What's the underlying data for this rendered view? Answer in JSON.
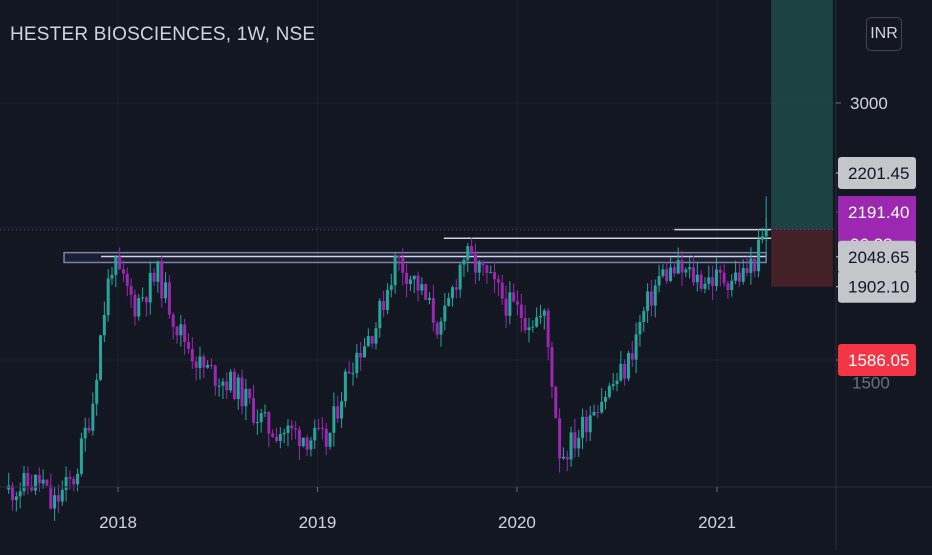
{
  "header": {
    "symbol_title": "HESTER BIOSCIENCES, 1W, NSE",
    "currency": "INR"
  },
  "colors": {
    "background": "#131722",
    "grid": "#1e222d",
    "up_candle": "#26a69a",
    "down_candle": "#9c27b0",
    "axis_text": "#d1d4dc",
    "current_price_line": "#9c27b0",
    "target_zone": "#1f4a46",
    "stop_zone": "#4a2128",
    "level_lines": "#cfd3dc",
    "resistance_box": "#7e80a0"
  },
  "price_axis": {
    "labels": [
      "3000"
    ],
    "badges": [
      {
        "text": "2201.45",
        "kind": "gray"
      },
      {
        "text": "2191.40",
        "kind": "purple"
      },
      {
        "text": "06:28",
        "kind": "purple-countdown"
      },
      {
        "text": "2048.65",
        "kind": "gray"
      },
      {
        "text": "1902.10",
        "kind": "gray"
      },
      {
        "text": "1586.05",
        "kind": "red"
      }
    ],
    "hidden_label": "1500"
  },
  "time_axis": {
    "labels": [
      "2018",
      "2019",
      "2020",
      "2021"
    ]
  },
  "chart_data": {
    "type": "candlestick",
    "title": "HESTER BIOSCIENCES, 1W, NSE",
    "interval": "1W",
    "currency": "INR",
    "scale": "log",
    "grid": true,
    "last_price": 2191.4,
    "countdown": "06:28",
    "price_levels": [
      2201.45,
      2191.4,
      2048.65,
      1902.1,
      1586.05
    ],
    "trend_path": [
      {
        "date": "2017-06-15",
        "close": 1150
      },
      {
        "date": "2017-08-15",
        "close": 1175
      },
      {
        "date": "2017-09-01",
        "close": 1100
      },
      {
        "date": "2017-10-15",
        "close": 1190
      },
      {
        "date": "2017-11-15",
        "close": 1420
      },
      {
        "date": "2017-12-20",
        "close": 2020
      },
      {
        "date": "2018-02-01",
        "close": 1820
      },
      {
        "date": "2018-03-15",
        "close": 1960
      },
      {
        "date": "2018-04-20",
        "close": 1720
      },
      {
        "date": "2018-06-01",
        "close": 1560
      },
      {
        "date": "2018-08-01",
        "close": 1490
      },
      {
        "date": "2018-10-01",
        "close": 1340
      },
      {
        "date": "2018-12-01",
        "close": 1320
      },
      {
        "date": "2019-01-20",
        "close": 1290
      },
      {
        "date": "2019-03-01",
        "close": 1570
      },
      {
        "date": "2019-04-20",
        "close": 1740
      },
      {
        "date": "2019-05-25",
        "close": 2040
      },
      {
        "date": "2019-07-01",
        "close": 1920
      },
      {
        "date": "2019-08-15",
        "close": 1700
      },
      {
        "date": "2019-09-25",
        "close": 2060
      },
      {
        "date": "2019-11-01",
        "close": 1960
      },
      {
        "date": "2019-12-15",
        "close": 1820
      },
      {
        "date": "2020-01-20",
        "close": 1760
      },
      {
        "date": "2020-02-20",
        "close": 1760
      },
      {
        "date": "2020-03-20",
        "close": 1250
      },
      {
        "date": "2020-04-20",
        "close": 1310
      },
      {
        "date": "2020-05-20",
        "close": 1420
      },
      {
        "date": "2020-06-20",
        "close": 1480
      },
      {
        "date": "2020-07-20",
        "close": 1560
      },
      {
        "date": "2020-08-20",
        "close": 1780
      },
      {
        "date": "2020-09-20",
        "close": 1960
      },
      {
        "date": "2020-10-20",
        "close": 1980
      },
      {
        "date": "2020-12-01",
        "close": 1940
      },
      {
        "date": "2021-01-10",
        "close": 1940
      },
      {
        "date": "2021-02-20",
        "close": 1960
      },
      {
        "date": "2021-03-15",
        "close": 2050
      },
      {
        "date": "2021-04-01",
        "close": 2191.4
      }
    ],
    "resistance_zone": {
      "from": "2017-11-20",
      "to": "2021-04-01",
      "low": 2020,
      "high": 2070
    },
    "horizontal_lines": [
      {
        "from": "2017-12-01",
        "to": "2021-04-01",
        "price": 2050
      },
      {
        "from": "2019-08-20",
        "to": "2021-04-10",
        "price": 2145
      },
      {
        "from": "2020-10-15",
        "to": "2021-04-10",
        "price": 2191.4
      }
    ],
    "position": {
      "entry": 2191.4,
      "target_zone": {
        "from": "2021-04-10",
        "to": "2021-08-01",
        "low": 2191.4,
        "high": 4600
      },
      "stop_zone": {
        "from": "2021-04-10",
        "to": "2021-08-01",
        "low": 1902.1,
        "high": 2191.4
      }
    }
  }
}
